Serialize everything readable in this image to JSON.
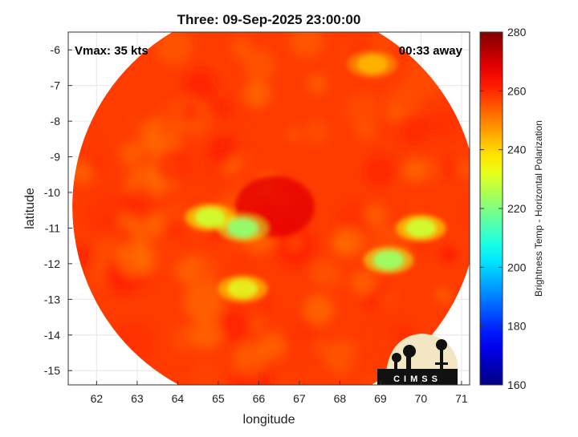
{
  "title": "Three: 09-Sep-2025 23:00:00",
  "vmax_text": "Vmax: 35 kts",
  "time_away_text": "00:33 away",
  "x_axis": {
    "label": "longitude",
    "range": [
      61.3,
      71.2
    ],
    "ticks": [
      62,
      63,
      64,
      65,
      66,
      67,
      68,
      69,
      70,
      71
    ]
  },
  "y_axis": {
    "label": "latitude",
    "range": [
      -15.4,
      -5.5
    ],
    "ticks": [
      -6,
      -7,
      -8,
      -9,
      -10,
      -11,
      -12,
      -13,
      -14,
      -15
    ]
  },
  "colorbar": {
    "label": "Brightness Temp - Horizontal Polarization",
    "range": [
      160,
      280
    ],
    "ticks": [
      280,
      260,
      240,
      220,
      200,
      180,
      160
    ],
    "colormap": "jet"
  },
  "swath": {
    "center": [
      66.4,
      -10.4
    ],
    "radius_deg": 5.0
  },
  "features": [
    {
      "name": "storm-center",
      "lon": 66.4,
      "lat": -10.4,
      "bt": 268
    },
    {
      "name": "rainband-west",
      "lon": 64.8,
      "lat": -10.7,
      "bt": 222
    },
    {
      "name": "rainband-core",
      "lon": 65.6,
      "lat": -11.0,
      "bt": 212
    },
    {
      "name": "rainband-south",
      "lon": 65.6,
      "lat": -12.7,
      "bt": 228
    },
    {
      "name": "rainband-east",
      "lon": 69.2,
      "lat": -11.9,
      "bt": 214
    },
    {
      "name": "rainband-east-tip",
      "lon": 70.0,
      "lat": -11.0,
      "bt": 222
    },
    {
      "name": "small-cell-ne",
      "lon": 68.8,
      "lat": -6.4,
      "bt": 242
    }
  ],
  "logo": {
    "text": "CIMSS"
  },
  "colors": {
    "background_bt": 258,
    "grid": "#e6e6e6",
    "axis": "#333333"
  }
}
